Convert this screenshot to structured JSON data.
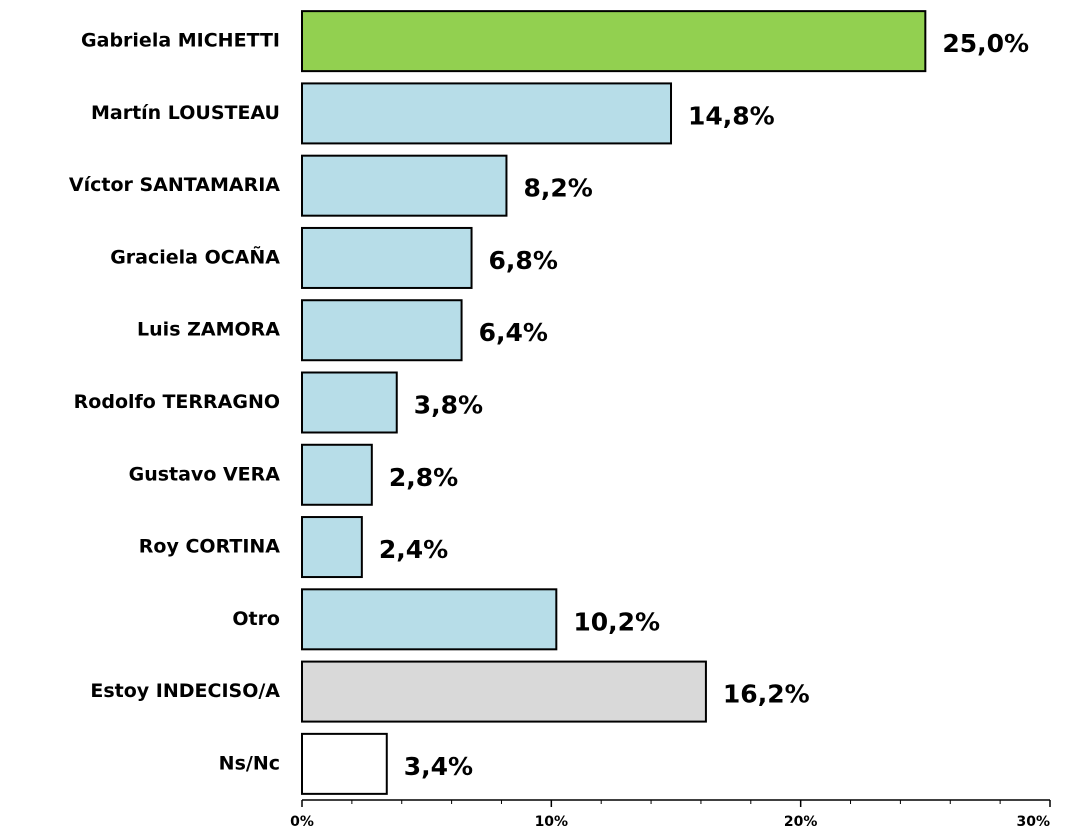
{
  "chart_data": {
    "type": "barh",
    "categories": [
      "Gabriela MICHETTI",
      "Martín LOUSTEAU",
      "Víctor SANTAMARIA",
      "Graciela OCAÑA",
      "Luis ZAMORA",
      "Rodolfo TERRAGNO",
      "Gustavo VERA",
      "Roy CORTINA",
      "Otro",
      "Estoy INDECISO/A",
      "Ns/Nc"
    ],
    "values": [
      25.0,
      14.8,
      8.2,
      6.8,
      6.4,
      3.8,
      2.8,
      2.4,
      10.2,
      16.2,
      3.4
    ],
    "value_labels": [
      "25,0%",
      "14,8%",
      "8,2%",
      "6,8%",
      "6,4%",
      "3,8%",
      "2,8%",
      "2,4%",
      "10,2%",
      "16,2%",
      "3,4%"
    ],
    "colors": [
      "#92d050",
      "#b7dde8",
      "#b7dde8",
      "#b7dde8",
      "#b7dde8",
      "#b7dde8",
      "#b7dde8",
      "#b7dde8",
      "#b7dde8",
      "#d9d9d9",
      "#ffffff"
    ],
    "xlim": [
      0,
      30
    ],
    "xticks": [
      {
        "value": 0,
        "label": "0%"
      },
      {
        "value": 10,
        "label": "10%"
      },
      {
        "value": 20,
        "label": "20%"
      },
      {
        "value": 30,
        "label": "30%"
      }
    ],
    "xticks_minor": [
      2,
      4,
      6,
      8,
      12,
      14,
      16,
      18,
      22,
      24,
      26,
      28
    ]
  }
}
